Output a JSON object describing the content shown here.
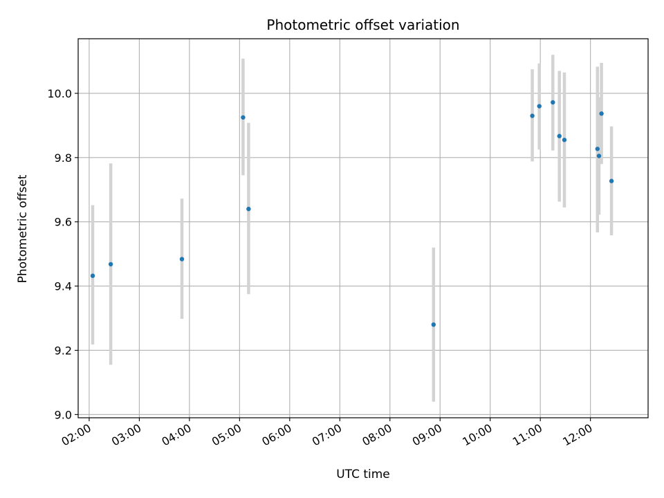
{
  "chart_data": {
    "type": "scatter",
    "title": "Photometric offset variation",
    "xlabel": "UTC time",
    "ylabel": "Photometric offset",
    "x_units": "hours UTC",
    "xlim": [
      1.78,
      13.15
    ],
    "ylim": [
      8.99,
      10.17
    ],
    "x_ticks": [
      2,
      3,
      4,
      5,
      6,
      7,
      8,
      9,
      10,
      11,
      12
    ],
    "x_tick_labels": [
      "02:00",
      "03:00",
      "04:00",
      "05:00",
      "06:00",
      "07:00",
      "08:00",
      "09:00",
      "10:00",
      "11:00",
      "12:00"
    ],
    "y_ticks": [
      9.0,
      9.2,
      9.4,
      9.6,
      9.8,
      10.0
    ],
    "y_tick_labels": [
      "9.0",
      "9.2",
      "9.4",
      "9.6",
      "9.8",
      "10.0"
    ],
    "grid": true,
    "legend": "none",
    "colors": {
      "point": "#1f77b4",
      "errorbar": "#d3d3d3",
      "grid": "#b0b0b0"
    },
    "points": [
      {
        "time": "02:04",
        "x": 2.07,
        "y": 9.432,
        "ylow": 9.218,
        "yhigh": 9.652
      },
      {
        "time": "02:26",
        "x": 2.43,
        "y": 9.468,
        "ylow": 9.155,
        "yhigh": 9.782
      },
      {
        "time": "03:51",
        "x": 3.85,
        "y": 9.484,
        "ylow": 9.298,
        "yhigh": 9.672
      },
      {
        "time": "05:04",
        "x": 5.07,
        "y": 9.925,
        "ylow": 9.745,
        "yhigh": 10.108
      },
      {
        "time": "05:11",
        "x": 5.18,
        "y": 9.64,
        "ylow": 9.375,
        "yhigh": 9.908
      },
      {
        "time": "08:52",
        "x": 8.87,
        "y": 9.28,
        "ylow": 9.04,
        "yhigh": 9.52
      },
      {
        "time": "10:50",
        "x": 10.84,
        "y": 9.93,
        "ylow": 9.788,
        "yhigh": 10.075
      },
      {
        "time": "10:59",
        "x": 10.98,
        "y": 9.96,
        "ylow": 9.825,
        "yhigh": 10.093
      },
      {
        "time": "11:15",
        "x": 11.25,
        "y": 9.972,
        "ylow": 9.822,
        "yhigh": 10.12
      },
      {
        "time": "11:23",
        "x": 11.38,
        "y": 9.867,
        "ylow": 9.663,
        "yhigh": 10.07
      },
      {
        "time": "11:29",
        "x": 11.48,
        "y": 9.855,
        "ylow": 9.645,
        "yhigh": 10.065
      },
      {
        "time": "12:08",
        "x": 12.14,
        "y": 9.827,
        "ylow": 9.567,
        "yhigh": 10.083
      },
      {
        "time": "12:10",
        "x": 12.17,
        "y": 9.805,
        "ylow": 9.622,
        "yhigh": 9.988
      },
      {
        "time": "12:13",
        "x": 12.22,
        "y": 9.937,
        "ylow": 9.78,
        "yhigh": 10.095
      },
      {
        "time": "12:25",
        "x": 12.42,
        "y": 9.727,
        "ylow": 9.558,
        "yhigh": 9.897
      }
    ]
  }
}
